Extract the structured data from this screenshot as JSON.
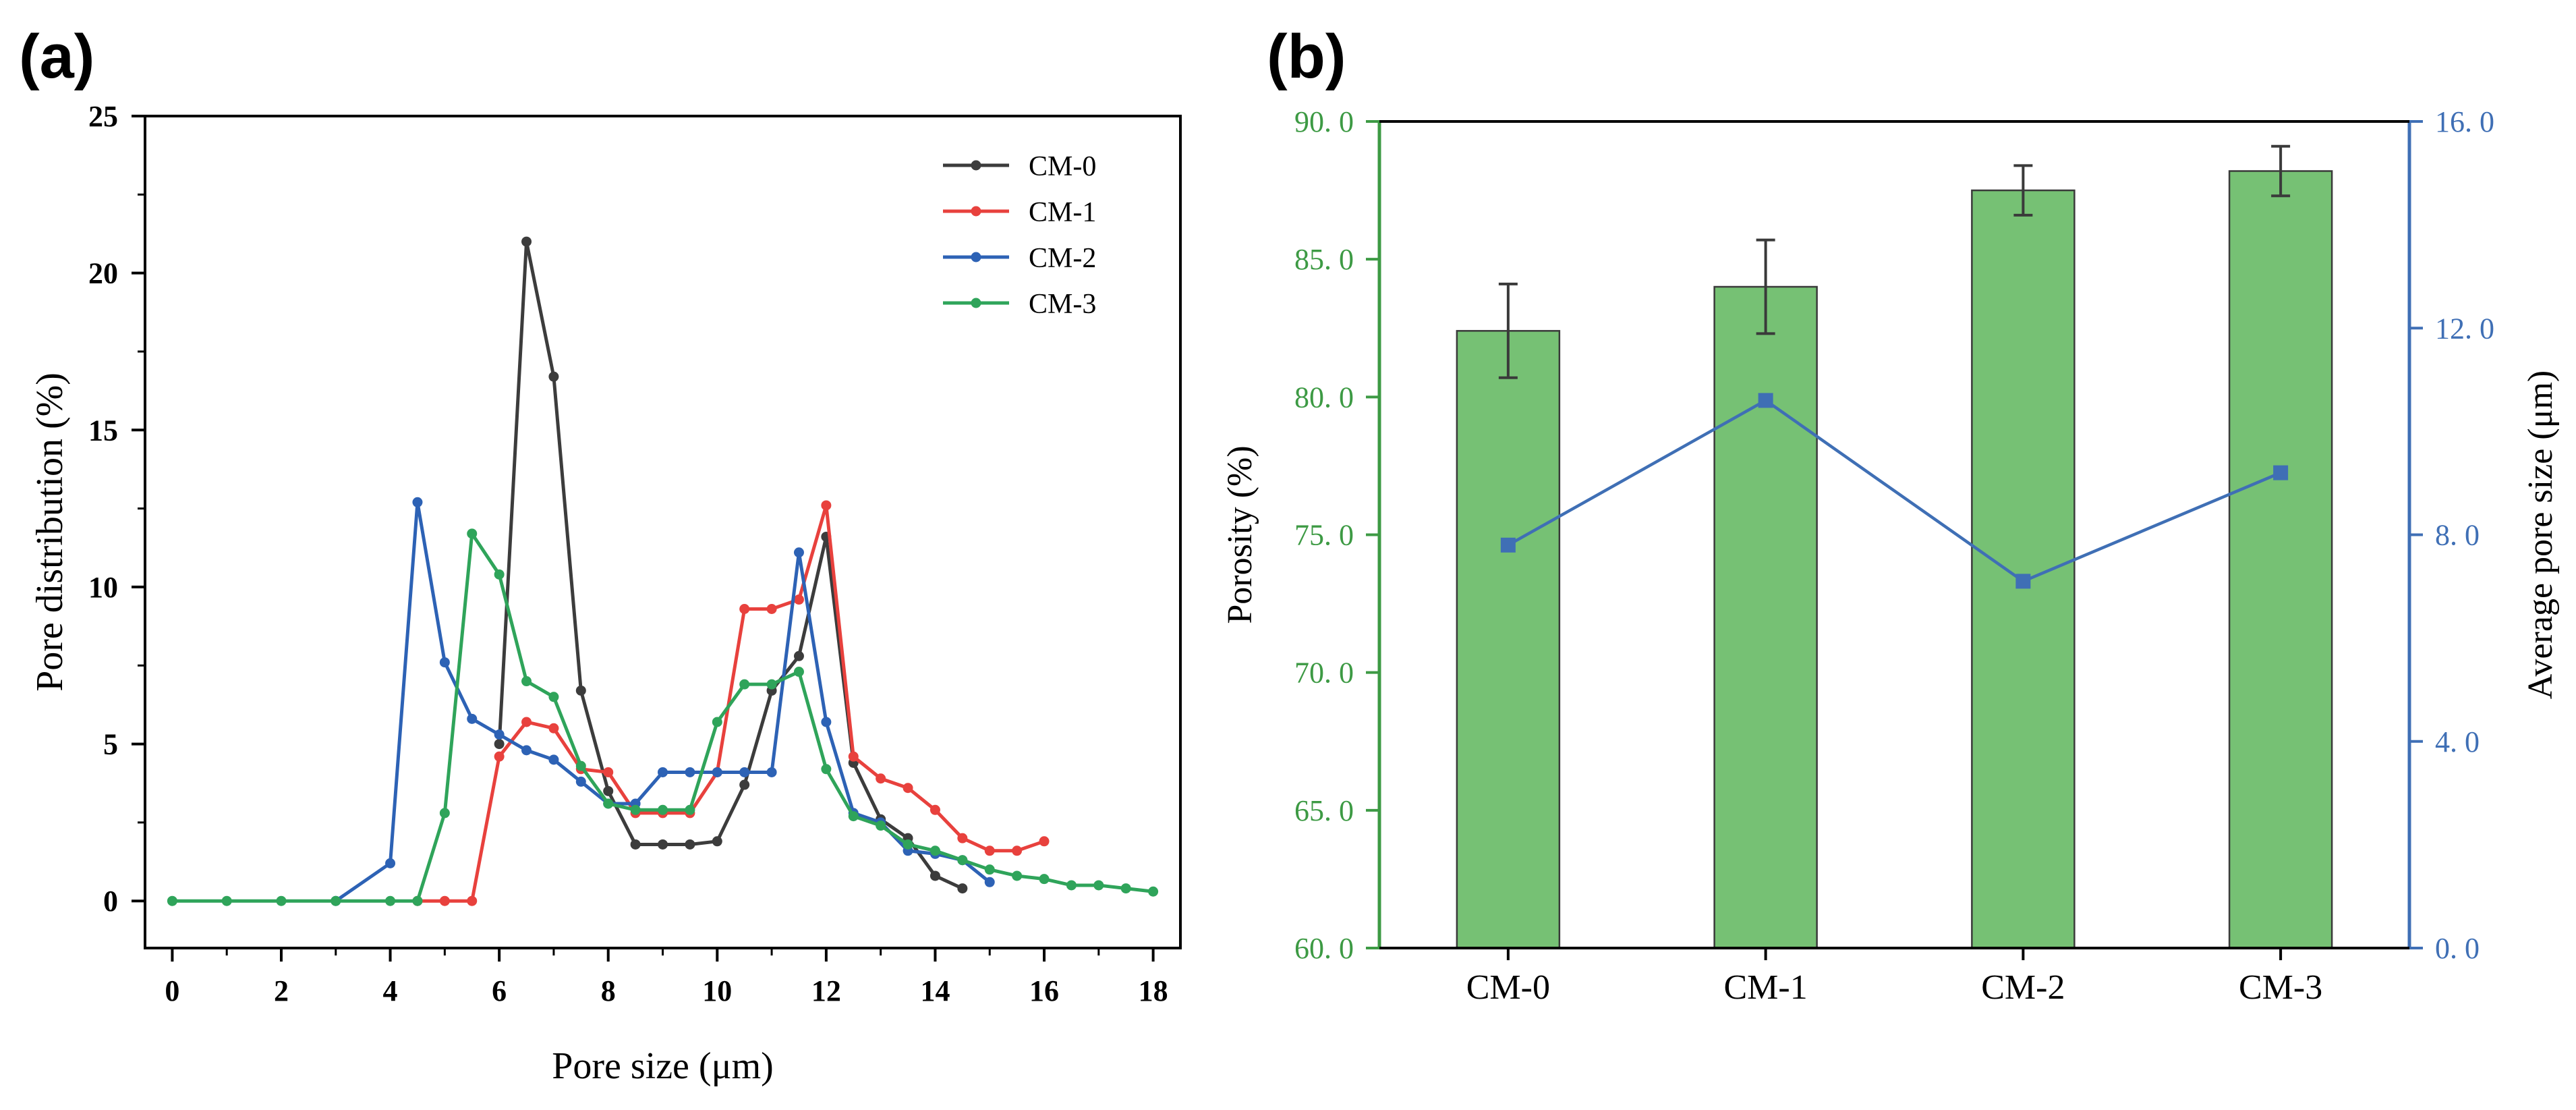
{
  "panels": {
    "a": "(a)",
    "b": "(b)"
  },
  "chart_data": [
    {
      "panel": "(a)",
      "type": "line",
      "title": "",
      "xlabel": "Pore size (μm)",
      "ylabel": "Pore distribution (%)",
      "xlim": [
        -0.5,
        18.5
      ],
      "ylim": [
        -1.5,
        25
      ],
      "xticks": [
        0,
        2,
        4,
        6,
        8,
        10,
        12,
        14,
        16,
        18
      ],
      "yticks": [
        0,
        5,
        10,
        15,
        20,
        25
      ],
      "grid": false,
      "legend_position": "top-right",
      "series": [
        {
          "name": "CM-0",
          "color": "#3c3c3c",
          "x": [
            6,
            6.5,
            7,
            7.5,
            8,
            8.5,
            9,
            9.5,
            10,
            10.5,
            11,
            11.5,
            12,
            12.5,
            13,
            13.5,
            14,
            14.5
          ],
          "y": [
            5.0,
            21.0,
            16.7,
            6.7,
            3.5,
            1.8,
            1.8,
            1.8,
            1.9,
            3.7,
            6.7,
            7.8,
            11.6,
            4.4,
            2.6,
            2.0,
            0.8,
            0.4
          ]
        },
        {
          "name": "CM-1",
          "color": "#e8413d",
          "x": [
            4.5,
            5,
            5.5,
            6,
            6.5,
            7,
            7.5,
            8,
            8.5,
            9,
            9.5,
            10,
            10.5,
            11,
            11.5,
            12,
            12.5,
            13,
            13.5,
            14,
            14.5,
            15,
            15.5,
            16
          ],
          "y": [
            0,
            0,
            0,
            4.6,
            5.7,
            5.5,
            4.2,
            4.1,
            2.8,
            2.8,
            2.8,
            4.1,
            9.3,
            9.3,
            9.6,
            12.6,
            4.6,
            3.9,
            3.6,
            2.9,
            2.0,
            1.6,
            1.6,
            1.9
          ]
        },
        {
          "name": "CM-2",
          "color": "#2d62b5",
          "x": [
            3,
            4,
            4.5,
            5,
            5.5,
            6,
            6.5,
            7,
            7.5,
            8,
            8.5,
            9,
            9.5,
            10,
            10.5,
            11,
            11.5,
            12,
            12.5,
            13,
            13.5,
            14,
            14.5,
            15
          ],
          "y": [
            0,
            1.2,
            12.7,
            7.6,
            5.8,
            5.3,
            4.8,
            4.5,
            3.8,
            3.1,
            3.1,
            4.1,
            4.1,
            4.1,
            4.1,
            4.1,
            11.1,
            5.7,
            2.8,
            2.5,
            1.6,
            1.5,
            1.3,
            0.6
          ]
        },
        {
          "name": "CM-3",
          "color": "#2fa45a",
          "x": [
            0,
            1,
            2,
            3,
            4,
            4.5,
            5,
            5.5,
            6,
            6.5,
            7,
            7.5,
            8,
            8.5,
            9,
            9.5,
            10,
            10.5,
            11,
            11.5,
            12,
            12.5,
            13,
            13.5,
            14,
            14.5,
            15,
            15.5,
            16,
            16.5,
            17,
            17.5,
            18
          ],
          "y": [
            0,
            0,
            0,
            0,
            0,
            0,
            2.8,
            11.7,
            10.4,
            7.0,
            6.5,
            4.3,
            3.1,
            2.9,
            2.9,
            2.9,
            5.7,
            6.9,
            6.9,
            7.3,
            4.2,
            2.7,
            2.4,
            1.8,
            1.6,
            1.3,
            1.0,
            0.8,
            0.7,
            0.5,
            0.5,
            0.4,
            0.3
          ]
        }
      ]
    },
    {
      "panel": "(b)",
      "type": "bar",
      "title": "",
      "xlabel": "",
      "categories": [
        "CM-0",
        "CM-1",
        "CM-2",
        "CM-3"
      ],
      "grid": false,
      "left_axis": {
        "label": "Porosity (%)",
        "color": "#3d9a44",
        "ylim": [
          60,
          90
        ],
        "ticks": [
          "60. 0",
          "65. 0",
          "70. 0",
          "75. 0",
          "80. 0",
          "85. 0",
          "90. 0"
        ],
        "tick_values": [
          60,
          65,
          70,
          75,
          80,
          85,
          90
        ]
      },
      "right_axis": {
        "label": "Average pore size (μm)",
        "color": "#3f6fb5",
        "ylim": [
          0,
          16
        ],
        "ticks": [
          "0. 0",
          "4. 0",
          "8. 0",
          "12. 0",
          "16. 0"
        ],
        "tick_values": [
          0,
          4,
          8,
          12,
          16
        ]
      },
      "bar_series": {
        "name": "Porosity",
        "color": "#76c174",
        "values": [
          82.4,
          84.0,
          87.5,
          88.2
        ],
        "errors": [
          1.7,
          1.7,
          0.9,
          0.9
        ]
      },
      "line_series": {
        "name": "Average pore size",
        "color": "#3f6fb5",
        "values": [
          7.8,
          10.6,
          7.1,
          9.2
        ]
      }
    }
  ]
}
